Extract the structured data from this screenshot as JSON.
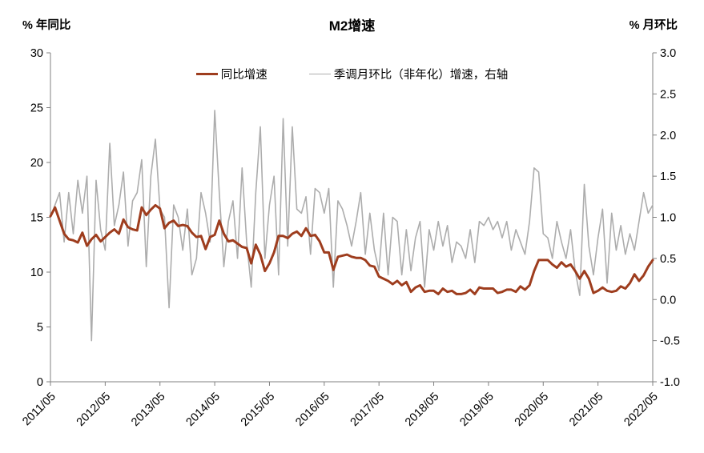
{
  "header": {
    "title": "M2增速",
    "left_axis_title": "% 年同比",
    "right_axis_title": "% 月环比"
  },
  "legend": [
    {
      "label": "同比增速",
      "color": "#9E3D1E",
      "thickness": 3
    },
    {
      "label": "季调月环比（非年化）增速，右轴",
      "color": "#ADADAD",
      "thickness": 1.6
    }
  ],
  "chart_data": {
    "type": "line",
    "title": "M2增速",
    "x_start": "2011/05",
    "x_step_months": 1,
    "x_tick_labels": [
      "2011/05",
      "2012/05",
      "2013/05",
      "2014/05",
      "2015/05",
      "2016/05",
      "2017/05",
      "2018/05",
      "2019/05",
      "2020/05",
      "2021/05",
      "2022/05"
    ],
    "x_tick_month_index": [
      0,
      12,
      24,
      36,
      48,
      60,
      72,
      84,
      96,
      108,
      120,
      132
    ],
    "left_axis": {
      "label": "% 年同比",
      "min": 0,
      "max": 30,
      "tick_labels": [
        "0",
        "5",
        "10",
        "15",
        "20",
        "25",
        "30"
      ],
      "tick_values": [
        0,
        5,
        10,
        15,
        20,
        25,
        30
      ]
    },
    "right_axis": {
      "label": "% 月环比",
      "min": -1.0,
      "max": 3.0,
      "tick_labels": [
        "-1.0",
        "-0.5",
        "0.0",
        "0.5",
        "1.0",
        "1.5",
        "2.0",
        "2.5",
        "3.0"
      ],
      "tick_values": [
        -1.0,
        -0.5,
        0.0,
        0.5,
        1.0,
        1.5,
        2.0,
        2.5,
        3.0
      ]
    },
    "grid": false,
    "legend_position": "top-center",
    "axis_color": "#808080",
    "series": [
      {
        "name": "同比增速",
        "axis": "left",
        "color": "#9E3D1E",
        "width": 3,
        "values": [
          15.1,
          15.9,
          14.7,
          13.5,
          13.0,
          12.9,
          12.7,
          13.6,
          12.4,
          13.0,
          13.4,
          12.8,
          13.2,
          13.6,
          13.9,
          13.5,
          14.8,
          14.1,
          13.9,
          13.8,
          15.9,
          15.2,
          15.7,
          16.1,
          15.8,
          14.0,
          14.5,
          14.7,
          14.2,
          14.3,
          14.2,
          13.6,
          13.2,
          13.3,
          12.1,
          13.2,
          13.4,
          14.7,
          13.5,
          12.8,
          12.9,
          12.6,
          12.3,
          12.2,
          10.8,
          12.5,
          11.6,
          10.1,
          10.8,
          11.8,
          13.3,
          13.3,
          13.1,
          13.5,
          13.7,
          13.3,
          14.0,
          13.3,
          13.4,
          12.8,
          11.8,
          11.8,
          10.2,
          11.4,
          11.5,
          11.6,
          11.4,
          11.3,
          11.3,
          11.1,
          10.6,
          10.5,
          9.6,
          9.4,
          9.2,
          8.9,
          9.2,
          8.8,
          9.1,
          8.2,
          8.6,
          8.8,
          8.2,
          8.3,
          8.3,
          8.0,
          8.5,
          8.2,
          8.3,
          8.0,
          8.0,
          8.1,
          8.4,
          8.0,
          8.6,
          8.5,
          8.5,
          8.5,
          8.1,
          8.2,
          8.4,
          8.4,
          8.2,
          8.7,
          8.4,
          8.8,
          10.1,
          11.1,
          11.1,
          11.1,
          10.7,
          10.4,
          10.9,
          10.5,
          10.7,
          10.1,
          9.4,
          10.1,
          9.4,
          8.1,
          8.3,
          8.6,
          8.3,
          8.2,
          8.3,
          8.7,
          8.5,
          9.0,
          9.8,
          9.2,
          9.7,
          10.5,
          11.1
        ]
      },
      {
        "name": "季调月环比（非年化）增速，右轴",
        "axis": "right",
        "color": "#ADADAD",
        "width": 1.6,
        "values": [
          1.0,
          1.15,
          1.3,
          0.7,
          1.3,
          0.8,
          1.45,
          1.05,
          1.5,
          -0.5,
          1.45,
          0.85,
          0.6,
          1.9,
          0.9,
          1.15,
          1.55,
          0.65,
          1.2,
          1.3,
          1.7,
          0.4,
          1.5,
          1.95,
          1.1,
          1.0,
          -0.1,
          1.15,
          1.0,
          0.6,
          1.1,
          0.3,
          0.5,
          1.3,
          1.05,
          0.7,
          2.3,
          1.3,
          0.4,
          0.95,
          1.2,
          0.5,
          1.6,
          0.7,
          0.15,
          1.3,
          2.1,
          0.5,
          1.15,
          1.5,
          0.3,
          2.2,
          0.65,
          2.1,
          1.1,
          1.05,
          1.25,
          0.55,
          1.35,
          1.3,
          1.05,
          1.35,
          0.15,
          1.2,
          1.1,
          0.9,
          0.65,
          0.95,
          1.3,
          0.55,
          1.05,
          0.6,
          0.35,
          1.05,
          0.3,
          1.0,
          0.95,
          0.3,
          0.85,
          0.35,
          0.75,
          0.95,
          0.15,
          0.85,
          0.6,
          0.95,
          0.65,
          0.9,
          0.45,
          0.7,
          0.65,
          0.5,
          0.85,
          0.45,
          0.95,
          0.9,
          1.0,
          0.85,
          0.95,
          0.75,
          0.95,
          0.6,
          0.85,
          0.7,
          0.55,
          0.95,
          1.6,
          1.55,
          0.8,
          0.75,
          0.5,
          0.95,
          0.7,
          0.5,
          0.85,
          0.35,
          0.05,
          1.4,
          0.65,
          0.3,
          0.75,
          1.1,
          0.2,
          1.05,
          0.6,
          0.9,
          0.55,
          0.8,
          0.6,
          0.95,
          1.3,
          1.05,
          1.15
        ]
      }
    ]
  }
}
